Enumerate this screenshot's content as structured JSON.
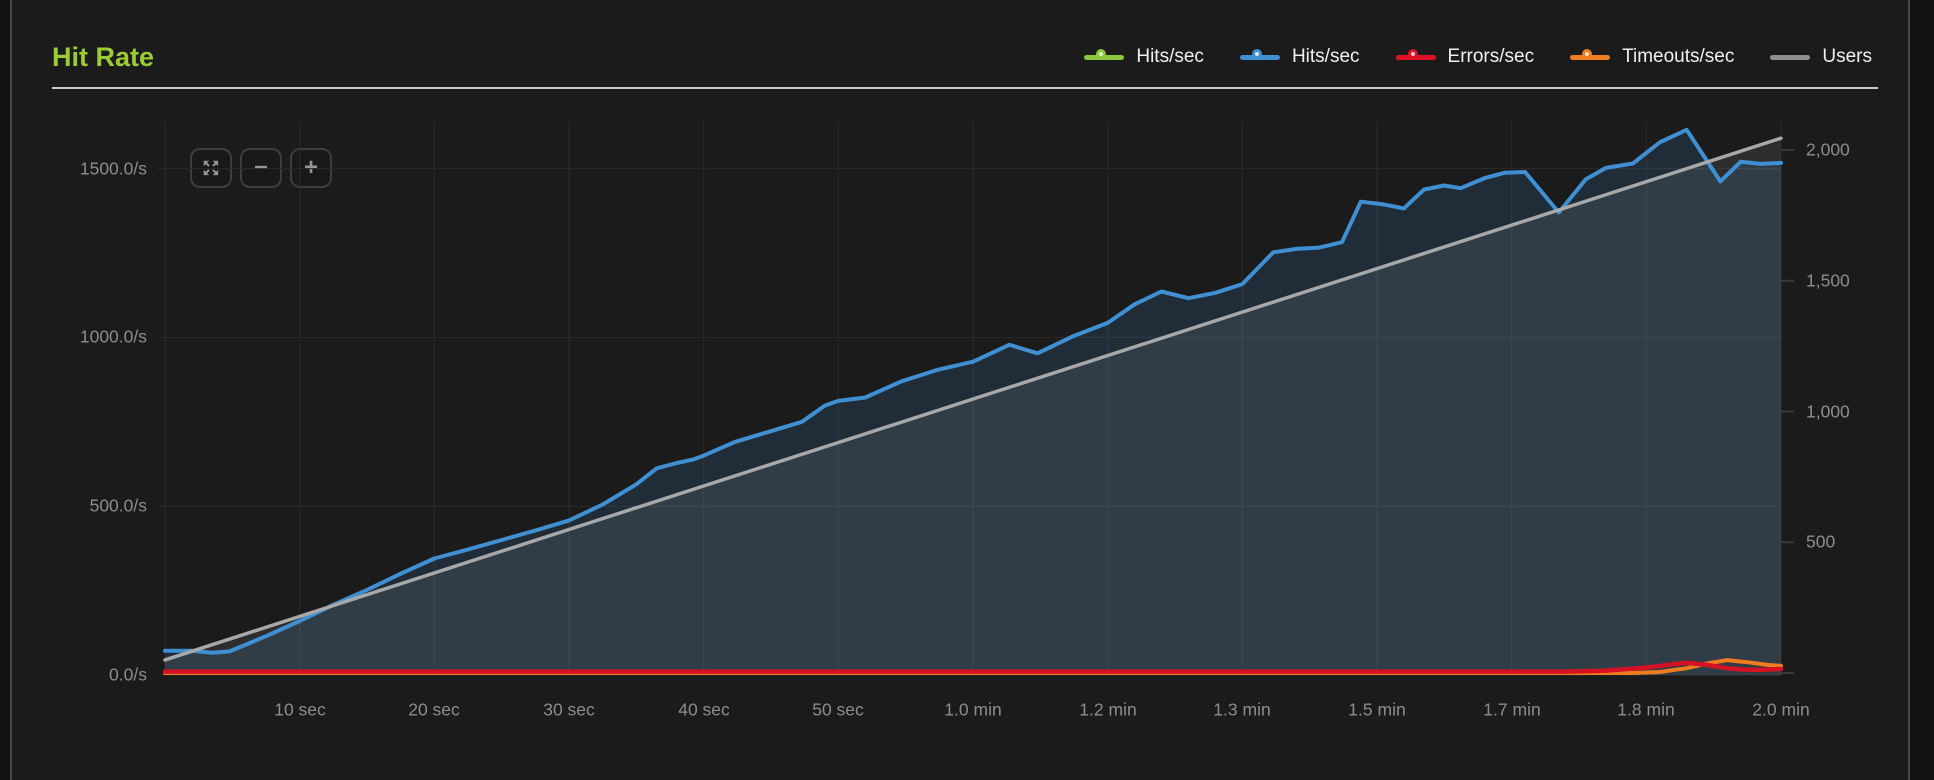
{
  "panel": {
    "title": "Hit Rate"
  },
  "controls": {
    "fullscreen_label": "fullscreen",
    "zoom_out_label": "−",
    "zoom_in_label": "+"
  },
  "colors": {
    "background": "#1b1b1b",
    "title_green": "#9bcc33",
    "grid": "#2b2b2b",
    "tick_text": "#8d8d8d",
    "legend_text": "#f0f0f0",
    "hits_green": "#8dc63f",
    "hits_blue": "#3f8fd2",
    "errors_red": "#d41224",
    "timeouts_orange": "#ef7d1f",
    "users_gray": "#9d9d9d"
  },
  "legend": [
    {
      "label": "Hits/sec",
      "color": "#8dc63f",
      "center": "#e2f2bb",
      "marker": "dot-line"
    },
    {
      "label": "Hits/sec",
      "color": "#3f8fd2",
      "center": "#cfe7fb",
      "marker": "dot-line"
    },
    {
      "label": "Errors/sec",
      "color": "#e01226",
      "center": "#fbd0d6",
      "marker": "dot-line"
    },
    {
      "label": "Timeouts/sec",
      "color": "#ef7d1f",
      "center": "#fde3c8",
      "marker": "dot-line"
    },
    {
      "label": "Users",
      "color": "#909090",
      "center": "",
      "marker": "line"
    }
  ],
  "chart_data": {
    "type": "area",
    "title": "Hit Rate",
    "x_unit": "time (seconds)",
    "x_range_seconds": [
      0,
      120
    ],
    "grid": true,
    "legend_position": "top-right",
    "x_ticks": [
      {
        "t": 10,
        "label": "10 sec"
      },
      {
        "t": 20,
        "label": "20 sec"
      },
      {
        "t": 30,
        "label": "30 sec"
      },
      {
        "t": 40,
        "label": "40 sec"
      },
      {
        "t": 50,
        "label": "50 sec"
      },
      {
        "t": 60,
        "label": "1.0 min"
      },
      {
        "t": 70,
        "label": "1.2 min"
      },
      {
        "t": 80,
        "label": "1.3 min"
      },
      {
        "t": 90,
        "label": "1.5 min"
      },
      {
        "t": 100,
        "label": "1.7 min"
      },
      {
        "t": 110,
        "label": "1.8 min"
      },
      {
        "t": 120,
        "label": "2.0 min"
      }
    ],
    "left_axis": {
      "unit": "/s",
      "range": [
        0,
        1665
      ],
      "ticks": [
        {
          "v": 0,
          "label": "0.0/s"
        },
        {
          "v": 500,
          "label": "500.0/s"
        },
        {
          "v": 1000,
          "label": "1000.0/s"
        },
        {
          "v": 1500,
          "label": "1500.0/s"
        }
      ]
    },
    "right_axis": {
      "name": "Users",
      "range": [
        0,
        2145
      ],
      "ticks": [
        {
          "v": 500,
          "label": "500"
        },
        {
          "v": 1000,
          "label": "1,000"
        },
        {
          "v": 1500,
          "label": "1,500"
        },
        {
          "v": 2000,
          "label": "2,000"
        }
      ]
    },
    "series": [
      {
        "name": "Hits/sec",
        "axis": "left",
        "color": "#8dc63f",
        "fill": false,
        "width": 4,
        "values": []
      },
      {
        "name": "Hits/sec",
        "axis": "left",
        "color": "#3f8fd2",
        "fill": true,
        "fill_color": "rgba(62,140,212,0.16)",
        "width": 4,
        "values": [
          [
            0,
            72
          ],
          [
            2,
            72
          ],
          [
            3.5,
            66
          ],
          [
            4.8,
            70
          ],
          [
            7.5,
            115
          ],
          [
            10,
            160
          ],
          [
            12.5,
            208
          ],
          [
            15,
            252
          ],
          [
            17.5,
            300
          ],
          [
            20,
            345
          ],
          [
            22.5,
            372
          ],
          [
            25,
            400
          ],
          [
            27.5,
            428
          ],
          [
            30,
            458
          ],
          [
            32.5,
            505
          ],
          [
            35,
            565
          ],
          [
            36.5,
            612
          ],
          [
            38,
            628
          ],
          [
            39.2,
            638
          ],
          [
            40,
            650
          ],
          [
            42.3,
            690
          ],
          [
            44.8,
            720
          ],
          [
            47.3,
            750
          ],
          [
            49,
            798
          ],
          [
            50,
            812
          ],
          [
            52,
            822
          ],
          [
            54.7,
            870
          ],
          [
            57.3,
            903
          ],
          [
            60,
            928
          ],
          [
            62.7,
            978
          ],
          [
            64.8,
            953
          ],
          [
            67.4,
            1003
          ],
          [
            70,
            1043
          ],
          [
            72,
            1098
          ],
          [
            74,
            1136
          ],
          [
            76,
            1116
          ],
          [
            78,
            1132
          ],
          [
            80,
            1158
          ],
          [
            82.3,
            1252
          ],
          [
            84,
            1262
          ],
          [
            85.7,
            1266
          ],
          [
            87.4,
            1282
          ],
          [
            88.8,
            1402
          ],
          [
            90.5,
            1394
          ],
          [
            92,
            1382
          ],
          [
            93.5,
            1438
          ],
          [
            95,
            1450
          ],
          [
            96.2,
            1442
          ],
          [
            98,
            1472
          ],
          [
            99.5,
            1488
          ],
          [
            101,
            1490
          ],
          [
            103.5,
            1370
          ],
          [
            105.5,
            1468
          ],
          [
            107,
            1502
          ],
          [
            109,
            1515
          ],
          [
            111,
            1578
          ],
          [
            113,
            1615
          ],
          [
            115.5,
            1462
          ],
          [
            117,
            1520
          ],
          [
            118.5,
            1514
          ],
          [
            120,
            1517
          ]
        ]
      },
      {
        "name": "Users",
        "axis": "right",
        "color": "#a8a8a8",
        "fill": true,
        "fill_color": "rgba(170,170,170,0.13)",
        "width": 3.5,
        "values": [
          [
            0,
            50
          ],
          [
            120,
            2045
          ]
        ]
      },
      {
        "name": "Timeouts/sec",
        "axis": "left",
        "color": "#ef7d1f",
        "fill": false,
        "width": 4,
        "values": [
          [
            0,
            6
          ],
          [
            109,
            6
          ],
          [
            111,
            9
          ],
          [
            113,
            20
          ],
          [
            114.5,
            34
          ],
          [
            116,
            44
          ],
          [
            117.5,
            38
          ],
          [
            119,
            30
          ],
          [
            120,
            27
          ]
        ]
      },
      {
        "name": "Errors/sec",
        "axis": "left",
        "color": "#d41224",
        "fill": false,
        "width": 4.5,
        "values": [
          [
            0,
            10
          ],
          [
            104,
            10
          ],
          [
            107,
            13
          ],
          [
            110,
            22
          ],
          [
            112,
            32
          ],
          [
            113,
            36
          ],
          [
            114.5,
            30
          ],
          [
            116,
            20
          ],
          [
            117.5,
            15
          ],
          [
            119,
            16
          ],
          [
            120,
            18
          ]
        ]
      }
    ]
  }
}
